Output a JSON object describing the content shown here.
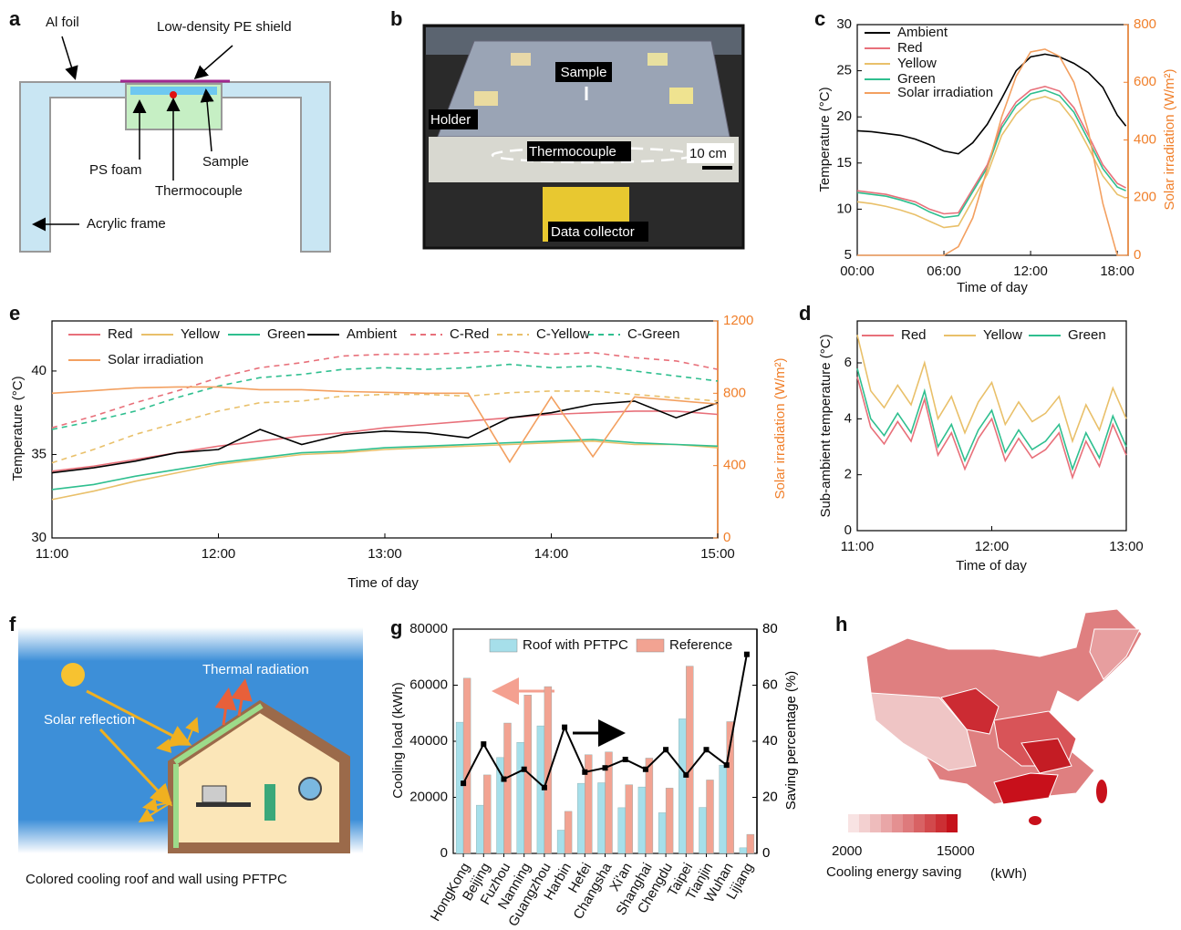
{
  "panel_a": {
    "label": "a",
    "al_foil": "Al foil",
    "pe_shield": "Low-density PE shield",
    "ps_foam": "PS foam",
    "sample": "Sample",
    "thermocouple": "Thermocouple",
    "frame": "Acrylic frame"
  },
  "panel_b": {
    "label": "b",
    "sample": "Sample",
    "holder": "Holder",
    "thermocouple": "Thermocouple",
    "scale": "10 cm",
    "collector": "Data collector"
  },
  "panel_f": {
    "label": "f",
    "thermal": "Thermal radiation",
    "solar": "Solar reflection",
    "caption": "Colored cooling roof and wall using PFTPC"
  },
  "panel_h": {
    "label": "h",
    "colorbar_ticks": [
      2000,
      15000
    ],
    "caption": "Cooling energy saving",
    "unit": "(kWh)"
  },
  "chart_data": [
    {
      "type": "line",
      "label": "c",
      "xlabel": "Time of day",
      "ylabel": "Temperature (°C)",
      "y2label": "Solar irradiation (W/m²)",
      "y2_axis_color": "#f07f2a",
      "xlim": [
        0,
        18.75
      ],
      "xticks": [
        {
          "value": 0,
          "label": "00:00"
        },
        {
          "value": 6,
          "label": "06:00"
        },
        {
          "value": 12,
          "label": "12:00"
        },
        {
          "value": 18,
          "label": "18:00"
        }
      ],
      "ylim": [
        5,
        30
      ],
      "yticks": [
        5,
        10,
        15,
        20,
        25,
        30
      ],
      "y2lim": [
        0,
        800
      ],
      "y2ticks": [
        0,
        200,
        400,
        600,
        800
      ],
      "x": [
        0,
        1,
        2,
        3,
        4,
        5,
        6,
        7,
        8,
        9,
        10,
        11,
        12,
        13,
        14,
        15,
        16,
        17,
        18,
        18.6
      ],
      "series": [
        {
          "name": "Ambient",
          "color": "#000000",
          "values": [
            18.5,
            18.4,
            18.2,
            18.0,
            17.6,
            17.0,
            16.3,
            16.0,
            17.2,
            19.2,
            22.0,
            25.0,
            26.5,
            26.8,
            26.5,
            25.8,
            24.8,
            23.2,
            20.2,
            19.0
          ]
        },
        {
          "name": "Red",
          "color": "#e8707a",
          "values": [
            12.0,
            11.8,
            11.6,
            11.2,
            10.8,
            10.0,
            9.5,
            9.6,
            12.2,
            14.8,
            19.2,
            21.6,
            22.9,
            23.3,
            22.8,
            21.0,
            18.0,
            14.8,
            12.8,
            12.3
          ]
        },
        {
          "name": "Yellow",
          "color": "#e9c06a",
          "values": [
            10.8,
            10.6,
            10.3,
            9.9,
            9.4,
            8.7,
            8.0,
            8.2,
            11.0,
            13.8,
            18.0,
            20.3,
            21.8,
            22.2,
            21.6,
            19.6,
            16.7,
            13.6,
            11.6,
            11.2
          ]
        },
        {
          "name": "Green",
          "color": "#2fbf8f",
          "values": [
            11.8,
            11.6,
            11.4,
            11.0,
            10.5,
            9.7,
            9.1,
            9.3,
            11.9,
            14.5,
            18.8,
            21.2,
            22.5,
            22.9,
            22.3,
            20.5,
            17.5,
            14.4,
            12.4,
            12.0
          ]
        },
        {
          "name": "Solar irradiation",
          "color": "#f3a060",
          "axis": "y2",
          "values": [
            0,
            0,
            0,
            0,
            0,
            0,
            0,
            30,
            130,
            300,
            480,
            620,
            705,
            715,
            690,
            600,
            430,
            180,
            0,
            0
          ]
        }
      ]
    },
    {
      "type": "line",
      "label": "e",
      "xlabel": "Time of day",
      "ylabel": "Temperature (°C)",
      "y2label": "Solar irradiation (W/m²)",
      "y2_axis_color": "#f07f2a",
      "xlim": [
        11,
        15
      ],
      "xticks": [
        {
          "value": 11,
          "label": "11:00"
        },
        {
          "value": 12,
          "label": "12:00"
        },
        {
          "value": 13,
          "label": "13:00"
        },
        {
          "value": 14,
          "label": "14:00"
        },
        {
          "value": 15,
          "label": "15:00"
        }
      ],
      "ylim": [
        30,
        43
      ],
      "yticks": [
        30,
        35,
        40
      ],
      "y2lim": [
        0,
        1200
      ],
      "y2ticks": [
        0,
        400,
        800,
        1200
      ],
      "x": [
        11,
        11.25,
        11.5,
        11.75,
        12,
        12.25,
        12.5,
        12.75,
        13,
        13.25,
        13.5,
        13.75,
        14,
        14.25,
        14.5,
        14.75,
        15
      ],
      "series": [
        {
          "name": "Red",
          "color": "#e8707a",
          "values": [
            34.0,
            34.3,
            34.7,
            35.1,
            35.5,
            35.8,
            36.1,
            36.3,
            36.6,
            36.8,
            37.0,
            37.2,
            37.4,
            37.5,
            37.6,
            37.6,
            37.4
          ]
        },
        {
          "name": "Yellow",
          "color": "#e9c06a",
          "values": [
            32.3,
            32.8,
            33.4,
            33.9,
            34.4,
            34.7,
            35.0,
            35.1,
            35.3,
            35.4,
            35.5,
            35.6,
            35.7,
            35.8,
            35.6,
            35.6,
            35.4
          ]
        },
        {
          "name": "Green",
          "color": "#2fbf8f",
          "values": [
            32.9,
            33.2,
            33.7,
            34.1,
            34.5,
            34.8,
            35.1,
            35.2,
            35.4,
            35.5,
            35.6,
            35.7,
            35.8,
            35.9,
            35.7,
            35.6,
            35.5
          ]
        },
        {
          "name": "Ambient",
          "color": "#000000",
          "values": [
            33.9,
            34.2,
            34.6,
            35.1,
            35.3,
            36.5,
            35.6,
            36.2,
            36.4,
            36.3,
            36.0,
            37.2,
            37.5,
            38.0,
            38.2,
            37.2,
            38.1
          ]
        },
        {
          "name": "C-Red",
          "color": "#e8707a",
          "dashed": true,
          "values": [
            36.6,
            37.3,
            38.1,
            38.8,
            39.6,
            40.2,
            40.5,
            40.9,
            41.0,
            41.0,
            41.1,
            41.2,
            41.0,
            41.1,
            40.8,
            40.6,
            40.1
          ]
        },
        {
          "name": "C-Yellow",
          "color": "#e9c06a",
          "dashed": true,
          "values": [
            34.5,
            35.3,
            36.2,
            36.9,
            37.6,
            38.1,
            38.2,
            38.5,
            38.6,
            38.6,
            38.5,
            38.7,
            38.8,
            38.8,
            38.6,
            38.4,
            38.2
          ]
        },
        {
          "name": "C-Green",
          "color": "#2fbf8f",
          "dashed": true,
          "values": [
            36.5,
            37.0,
            37.6,
            38.4,
            39.1,
            39.6,
            39.8,
            40.1,
            40.2,
            40.1,
            40.2,
            40.4,
            40.2,
            40.3,
            40.0,
            39.7,
            39.4
          ]
        },
        {
          "name": "Solar irradiation",
          "color": "#f3a060",
          "axis": "y2",
          "values": [
            800,
            815,
            830,
            835,
            835,
            820,
            820,
            810,
            805,
            800,
            800,
            420,
            780,
            450,
            780,
            760,
            740
          ]
        }
      ]
    },
    {
      "type": "line",
      "label": "d",
      "xlabel": "Time of day",
      "ylabel": "Sub-ambient temperature (°C)",
      "xlim": [
        11,
        13
      ],
      "xticks": [
        {
          "value": 11,
          "label": "11:00"
        },
        {
          "value": 12,
          "label": "12:00"
        },
        {
          "value": 13,
          "label": "13:00"
        }
      ],
      "ylim": [
        0,
        7.5
      ],
      "yticks": [
        0,
        2,
        4,
        6
      ],
      "x": [
        11,
        11.1,
        11.2,
        11.3,
        11.4,
        11.5,
        11.6,
        11.7,
        11.8,
        11.9,
        12,
        12.1,
        12.2,
        12.3,
        12.4,
        12.5,
        12.6,
        12.7,
        12.8,
        12.9,
        13
      ],
      "series": [
        {
          "name": "Red",
          "color": "#e8707a",
          "values": [
            5.5,
            3.7,
            3.1,
            3.9,
            3.2,
            4.7,
            2.7,
            3.5,
            2.2,
            3.3,
            4.0,
            2.5,
            3.3,
            2.6,
            2.9,
            3.5,
            1.9,
            3.2,
            2.3,
            3.8,
            2.7
          ]
        },
        {
          "name": "Yellow",
          "color": "#e9c06a",
          "values": [
            7.0,
            5.0,
            4.4,
            5.2,
            4.5,
            6.0,
            4.0,
            4.8,
            3.5,
            4.6,
            5.3,
            3.8,
            4.6,
            3.9,
            4.2,
            4.8,
            3.2,
            4.5,
            3.6,
            5.1,
            4.0
          ]
        },
        {
          "name": "Green",
          "color": "#2fbf8f",
          "values": [
            5.8,
            4.0,
            3.4,
            4.2,
            3.5,
            5.0,
            3.0,
            3.8,
            2.5,
            3.6,
            4.3,
            2.8,
            3.6,
            2.9,
            3.2,
            3.8,
            2.2,
            3.5,
            2.6,
            4.1,
            3.0
          ]
        }
      ]
    },
    {
      "type": "bar",
      "label": "g",
      "ylabel": "Cooling load (kWh)",
      "y2label": "Saving percentage (%)",
      "categories": [
        "HongKong",
        "Beijing",
        "Fuzhou",
        "Nanning",
        "Guangzhou",
        "Harbin",
        "Hefei",
        "Changsha",
        "Xi'an",
        "Shanghai",
        "Chengdu",
        "Taipei",
        "Tianjin",
        "Wuhan",
        "Lijiang"
      ],
      "ylim": [
        0,
        80000
      ],
      "yticks": [
        0,
        20000,
        40000,
        60000,
        80000
      ],
      "y2lim": [
        0,
        80
      ],
      "y2ticks": [
        0,
        20,
        40,
        60,
        80
      ],
      "series": [
        {
          "name": "Roof with PFTPC",
          "color": "#a6dfea",
          "values": [
            46800,
            17200,
            34200,
            39600,
            45500,
            8300,
            25000,
            25200,
            16300,
            23700,
            14500,
            48000,
            16400,
            31500,
            2000
          ]
        },
        {
          "name": "Reference",
          "color": "#f2a392",
          "values": [
            62500,
            28000,
            46500,
            56500,
            59500,
            15000,
            35200,
            36200,
            24500,
            34000,
            23300,
            66800,
            26200,
            47000,
            6800
          ]
        },
        {
          "color": "#000000",
          "axis": "y2",
          "values": [
            25,
            39,
            26.5,
            30,
            23.5,
            45,
            29,
            30.5,
            33.5,
            30,
            37,
            28,
            37,
            31.5,
            71
          ]
        }
      ]
    }
  ]
}
